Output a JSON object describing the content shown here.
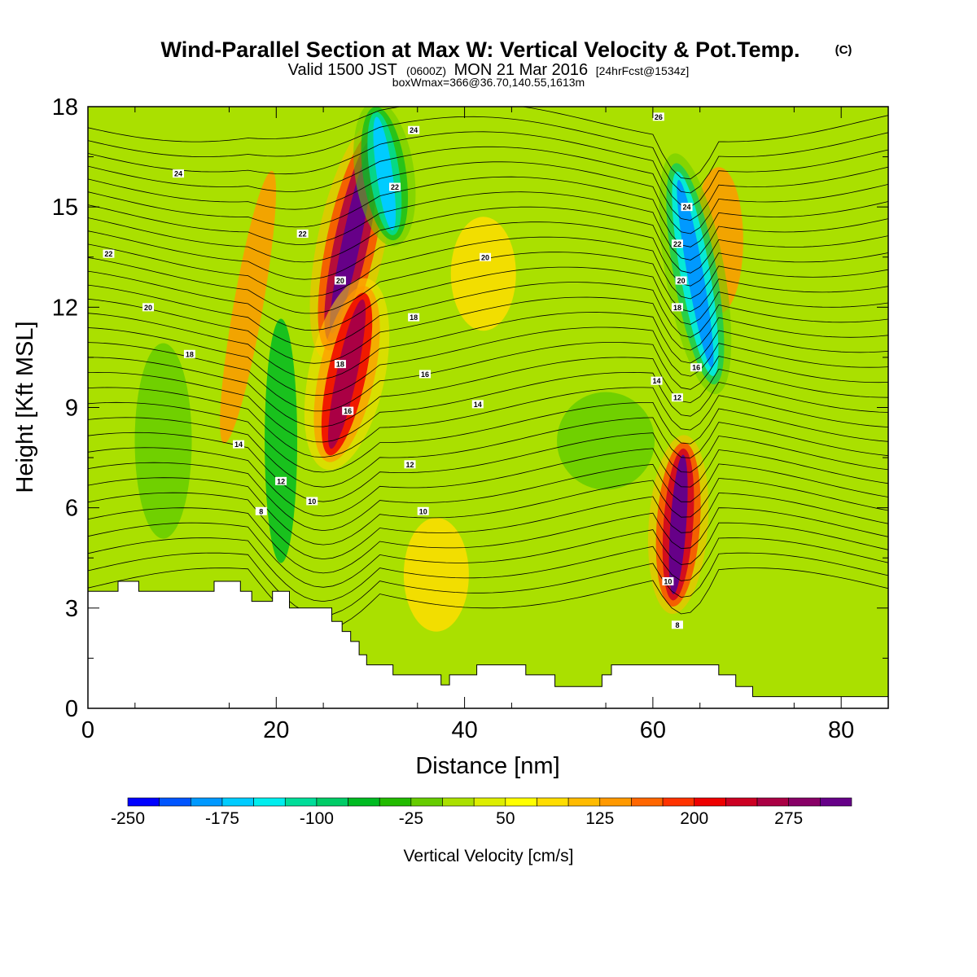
{
  "title": {
    "main": "Wind-Parallel Section at Max W: Vertical Velocity & Pot.Temp.",
    "main_suffix": "(C)",
    "valid_prefix": "Valid 1500 JST",
    "valid_zulu": "(0600Z)",
    "valid_date": "MON 21 Mar 2016",
    "forecast_info": "[24hrFcst@1534z]",
    "box_info": "boxWmax=366@36.70,140.55,1613m"
  },
  "colorbar": {
    "label": "Vertical Velocity [cm/s]",
    "tick_labels": [
      "-250",
      "-175",
      "-100",
      "-25",
      "50",
      "125",
      "200",
      "275"
    ],
    "colors": [
      "#0000ff",
      "#0055ff",
      "#0099ff",
      "#00ccff",
      "#00eeee",
      "#00dd99",
      "#00cc66",
      "#00bb22",
      "#22bb00",
      "#66cc00",
      "#aae000",
      "#ddee00",
      "#ffff00",
      "#ffdd00",
      "#ffbb00",
      "#ff9900",
      "#ff6600",
      "#ff3300",
      "#ee0000",
      "#cc0022",
      "#aa0044",
      "#880066",
      "#660088"
    ]
  },
  "chart_data": {
    "type": "heatmap",
    "xlabel": "Distance [nm]",
    "ylabel": "Height [Kft MSL]",
    "xlim": [
      0,
      85
    ],
    "ylim": [
      0,
      18
    ],
    "x_ticks": [
      0,
      20,
      40,
      60,
      80
    ],
    "y_ticks": [
      0,
      3,
      6,
      9,
      12,
      15,
      18
    ],
    "x_tick_labels": [
      "0",
      "20",
      "40",
      "60",
      "80"
    ],
    "y_tick_labels": [
      "0",
      "3",
      "6",
      "9",
      "12",
      "15",
      "18"
    ],
    "background_field": "Vertical Velocity [cm/s]",
    "background_value": 0,
    "velocity_features": [
      {
        "x": 28,
        "y": 14,
        "value": 300
      },
      {
        "x": 27.5,
        "y": 10,
        "value": 220
      },
      {
        "x": 31.5,
        "y": 16,
        "value": -210
      },
      {
        "x": 62.7,
        "y": 5.5,
        "value": 280
      },
      {
        "x": 64.5,
        "y": 13,
        "value": -230
      },
      {
        "x": 17,
        "y": 12,
        "value": 110
      },
      {
        "x": 20.5,
        "y": 8,
        "value": -90
      },
      {
        "x": 67,
        "y": 14,
        "value": 110
      },
      {
        "x": 37,
        "y": 4,
        "value": 60
      },
      {
        "x": 42,
        "y": 13,
        "value": 40
      },
      {
        "x": 55,
        "y": 8,
        "value": -55
      },
      {
        "x": 8,
        "y": 8,
        "value": -40
      }
    ],
    "contour_field": "Pot.Temp. [C]",
    "contour_labels": [
      {
        "text": "24",
        "x": 9.6,
        "y": 16.0
      },
      {
        "text": "22",
        "x": 2.2,
        "y": 13.6
      },
      {
        "text": "20",
        "x": 6.4,
        "y": 12.0
      },
      {
        "text": "18",
        "x": 10.8,
        "y": 10.6
      },
      {
        "text": "14",
        "x": 16.0,
        "y": 7.9
      },
      {
        "text": "12",
        "x": 20.5,
        "y": 6.8
      },
      {
        "text": "10",
        "x": 23.8,
        "y": 6.2
      },
      {
        "text": "8",
        "x": 18.4,
        "y": 5.9
      },
      {
        "text": "22",
        "x": 22.8,
        "y": 14.2
      },
      {
        "text": "20",
        "x": 26.8,
        "y": 12.8
      },
      {
        "text": "18",
        "x": 26.8,
        "y": 10.3
      },
      {
        "text": "16",
        "x": 27.6,
        "y": 8.9
      },
      {
        "text": "24",
        "x": 34.6,
        "y": 17.3
      },
      {
        "text": "22",
        "x": 32.6,
        "y": 15.6
      },
      {
        "text": "20",
        "x": 42.2,
        "y": 13.5
      },
      {
        "text": "18",
        "x": 34.6,
        "y": 11.7
      },
      {
        "text": "16",
        "x": 35.8,
        "y": 10.0
      },
      {
        "text": "14",
        "x": 41.4,
        "y": 9.1
      },
      {
        "text": "12",
        "x": 34.2,
        "y": 7.3
      },
      {
        "text": "10",
        "x": 35.6,
        "y": 5.9
      },
      {
        "text": "26",
        "x": 60.6,
        "y": 17.7
      },
      {
        "text": "24",
        "x": 63.6,
        "y": 15.0
      },
      {
        "text": "22",
        "x": 62.6,
        "y": 13.9
      },
      {
        "text": "20",
        "x": 63.0,
        "y": 12.8
      },
      {
        "text": "18",
        "x": 62.6,
        "y": 12.0
      },
      {
        "text": "16",
        "x": 64.6,
        "y": 10.2
      },
      {
        "text": "14",
        "x": 60.4,
        "y": 9.8
      },
      {
        "text": "12",
        "x": 62.6,
        "y": 9.3
      },
      {
        "text": "10",
        "x": 61.6,
        "y": 3.8
      },
      {
        "text": "8",
        "x": 62.6,
        "y": 2.5
      }
    ],
    "terrain_profile": [
      [
        0,
        3.5
      ],
      [
        3.2,
        3.5
      ],
      [
        3.2,
        3.8
      ],
      [
        5.4,
        3.8
      ],
      [
        5.4,
        3.5
      ],
      [
        13.4,
        3.5
      ],
      [
        13.4,
        3.8
      ],
      [
        16.2,
        3.8
      ],
      [
        16.2,
        3.5
      ],
      [
        17.4,
        3.5
      ],
      [
        17.4,
        3.2
      ],
      [
        19.6,
        3.2
      ],
      [
        19.6,
        3.5
      ],
      [
        21.4,
        3.5
      ],
      [
        21.4,
        3.0
      ],
      [
        25.9,
        3.0
      ],
      [
        25.9,
        2.6
      ],
      [
        27.0,
        2.6
      ],
      [
        27.0,
        2.3
      ],
      [
        27.9,
        2.3
      ],
      [
        27.9,
        2.0
      ],
      [
        28.8,
        2.0
      ],
      [
        28.8,
        1.6
      ],
      [
        29.6,
        1.6
      ],
      [
        29.6,
        1.3
      ],
      [
        32.4,
        1.3
      ],
      [
        32.4,
        1.0
      ],
      [
        37.5,
        1.0
      ],
      [
        37.5,
        0.7
      ],
      [
        38.4,
        0.7
      ],
      [
        38.4,
        1.0
      ],
      [
        41.3,
        1.0
      ],
      [
        41.3,
        1.3
      ],
      [
        46.5,
        1.3
      ],
      [
        46.5,
        1.0
      ],
      [
        49.6,
        1.0
      ],
      [
        49.6,
        0.65
      ],
      [
        54.6,
        0.65
      ],
      [
        54.6,
        1.0
      ],
      [
        55.6,
        1.0
      ],
      [
        55.6,
        1.3
      ],
      [
        67.0,
        1.3
      ],
      [
        67.0,
        1.0
      ],
      [
        68.8,
        1.0
      ],
      [
        68.8,
        0.65
      ],
      [
        70.6,
        0.65
      ],
      [
        70.6,
        0.35
      ],
      [
        85,
        0.35
      ]
    ]
  }
}
